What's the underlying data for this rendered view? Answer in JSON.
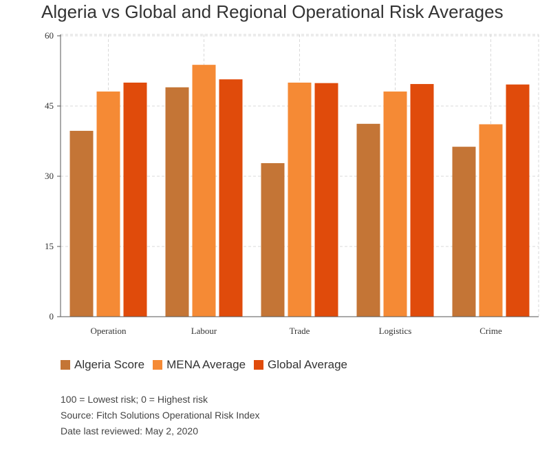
{
  "title": "Algeria vs Global and Regional Operational Risk Averages",
  "colors": {
    "algeria": "#c47536",
    "mena": "#f58a35",
    "global": "#e04b0b"
  },
  "legend": [
    {
      "label": "Algeria Score",
      "color": "#c47536"
    },
    {
      "label": "MENA Average",
      "color": "#f58a35"
    },
    {
      "label": "Global Average",
      "color": "#e04b0b"
    }
  ],
  "notes": {
    "line1": "100 = Lowest risk; 0 = Highest risk",
    "line2": "Source: Fitch Solutions Operational Risk Index",
    "line3": "Date last reviewed: May 2, 2020"
  },
  "chart_data": {
    "type": "bar",
    "title": "Algeria vs Global and Regional Operational Risk Averages",
    "xlabel": "",
    "ylabel": "",
    "categories": [
      "Operation",
      "Labour",
      "Trade",
      "Logistics",
      "Crime"
    ],
    "series": [
      {
        "name": "Algeria Score",
        "values": [
          39.7,
          49.0,
          32.8,
          41.2,
          36.3
        ]
      },
      {
        "name": "MENA Average",
        "values": [
          48.1,
          53.8,
          50.0,
          48.1,
          41.1
        ]
      },
      {
        "name": "Global Average",
        "values": [
          50.0,
          50.7,
          49.9,
          49.7,
          49.6
        ]
      }
    ],
    "ylim": [
      0,
      60
    ],
    "yticks": [
      0,
      15,
      30,
      45,
      60
    ],
    "grid": true,
    "legend_position": "bottom-left"
  }
}
